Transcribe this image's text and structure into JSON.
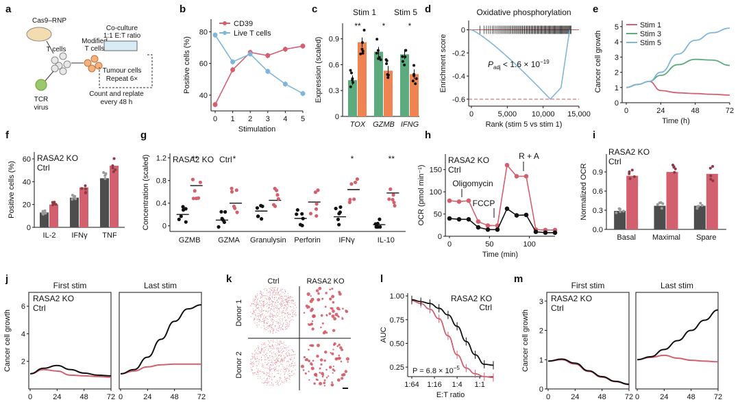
{
  "figure": {
    "panel_letters": [
      "a",
      "b",
      "c",
      "d",
      "e",
      "f",
      "g",
      "h",
      "i",
      "j",
      "k",
      "l",
      "m"
    ]
  },
  "colors": {
    "red": "#d2606e",
    "green": "#5bab7f",
    "orange": "#ef8452",
    "blue": "#7fb6d9",
    "dark": "#4d4d4d",
    "black": "#111111",
    "gray": "#777777"
  },
  "panel_a": {
    "labels": [
      "Cas9–RNP",
      "T cells",
      "Modified",
      "T cells",
      "Co-culture",
      "1:1 E:T ratio",
      "Tumour cells",
      "Repeat 6×",
      "Count and replate",
      "every 48 h",
      "TCR",
      "virus"
    ]
  },
  "chart_data": [
    {
      "panel": "b",
      "type": "line",
      "x": [
        0,
        1,
        2,
        3,
        4,
        5
      ],
      "xlabel": "Stimulation",
      "ylabel": "Positive cells (%)",
      "ylim": [
        30,
        88
      ],
      "yticks": [
        40,
        60,
        80
      ],
      "series": [
        {
          "name": "CD39",
          "color": "red",
          "values": [
            34,
            56,
            67,
            65,
            69,
            71
          ]
        },
        {
          "name": "Live T cells",
          "color": "blue",
          "values": [
            78,
            61,
            66,
            55,
            47,
            41
          ]
        }
      ]
    },
    {
      "panel": "c",
      "type": "bar",
      "categories": [
        "TOX",
        "GZMB",
        "IFNG"
      ],
      "ylabel": "Expression (scaled)",
      "ylim": [
        0,
        1.08
      ],
      "yticks": [
        0,
        0.3,
        0.6,
        0.9
      ],
      "series": [
        {
          "name": "Stim 1",
          "color": "green",
          "values": [
            0.42,
            0.75,
            0.72
          ]
        },
        {
          "name": "Stim 5",
          "color": "orange",
          "values": [
            0.86,
            0.53,
            0.49
          ]
        }
      ],
      "significance": [
        "**",
        "*",
        "*"
      ]
    },
    {
      "panel": "d",
      "type": "line",
      "title": "Oxidative phosphorylation",
      "xlabel": "Rank (stim 5 vs stim 1)",
      "ylabel": "Enrichment score",
      "xlim": [
        0,
        15000
      ],
      "ylim": [
        -0.66,
        0.08
      ],
      "xticks": [
        "0",
        "5,000",
        "10,000",
        "15,000"
      ],
      "yticks": [
        -0.6,
        -0.4,
        -0.2,
        0
      ],
      "min_point": {
        "x": 11000,
        "y": -0.6
      },
      "threshold": -0.6,
      "annotation": "P",
      "annotation_sub": "adj",
      "annotation_rest": " < 1.6 × 10",
      "annotation_exp": "−19"
    },
    {
      "panel": "e",
      "type": "line",
      "xlabel": "Time (h)",
      "ylabel": "Cancer cell growth",
      "x": [
        0,
        8,
        16,
        24,
        36,
        48,
        60,
        72
      ],
      "ylim": [
        0,
        5.4
      ],
      "yticks": [
        0,
        1,
        2,
        3,
        4,
        5
      ],
      "xticks": [
        0,
        24,
        48,
        72
      ],
      "series": [
        {
          "name": "Stim 1",
          "color": "red",
          "values": [
            1.0,
            1.2,
            1.4,
            0.8,
            0.65,
            0.6,
            0.55,
            0.5
          ]
        },
        {
          "name": "Stim 3",
          "color": "green",
          "values": [
            1.0,
            1.2,
            1.4,
            1.8,
            2.5,
            2.85,
            2.8,
            2.45
          ]
        },
        {
          "name": "Stim 5",
          "color": "blue",
          "values": [
            1.0,
            1.2,
            1.4,
            2.0,
            3.2,
            4.1,
            4.6,
            4.9
          ]
        }
      ]
    },
    {
      "panel": "f",
      "type": "bar",
      "categories": [
        "IL-2",
        "IFNγ",
        "TNF"
      ],
      "ylabel": "Positive cells (%)",
      "ylim": [
        0,
        66
      ],
      "yticks": [
        0,
        20,
        40,
        60
      ],
      "series": [
        {
          "name": "Ctrl",
          "color": "dark",
          "values": [
            13,
            26,
            43
          ]
        },
        {
          "name": "RASA2 KO",
          "color": "red",
          "values": [
            20,
            35,
            54
          ]
        }
      ]
    },
    {
      "panel": "g",
      "type": "scatter",
      "categories": [
        "GZMB",
        "GZMA",
        "Granulysin",
        "Perforin",
        "IFNγ",
        "IL-10"
      ],
      "ylabel": "Concentration (scaled)",
      "ylim": [
        -0.1,
        1.28
      ],
      "yticks": [
        0,
        0.4,
        0.8,
        1.2
      ],
      "series": [
        {
          "name": "Ctrl",
          "color": "black",
          "means": [
            0.2,
            0.1,
            0.26,
            0.13,
            0.16,
            0.02
          ]
        },
        {
          "name": "RASA2 KO",
          "color": "red",
          "means": [
            0.71,
            0.4,
            0.45,
            0.42,
            0.64,
            0.58
          ]
        }
      ],
      "significance": [
        "**",
        "*",
        "",
        "",
        "*",
        "**"
      ]
    },
    {
      "panel": "h",
      "type": "line",
      "xlabel": "Time (min)",
      "ylabel": "OCR (pmol min⁻¹)",
      "x": [
        0,
        12,
        24,
        36,
        48,
        60,
        72,
        84,
        96,
        108,
        120,
        132
      ],
      "ylim": [
        0,
        185
      ],
      "yticks": [
        0,
        50,
        100,
        150
      ],
      "xticks": [
        0,
        50,
        100
      ],
      "series": [
        {
          "name": "RASA2 KO",
          "color": "red",
          "values": [
            80,
            78,
            80,
            33,
            24,
            24,
            160,
            135,
            135,
            15,
            14,
            14
          ]
        },
        {
          "name": "Ctrl",
          "color": "black",
          "values": [
            40,
            38,
            38,
            20,
            15,
            15,
            62,
            47,
            48,
            10,
            8,
            8
          ]
        }
      ],
      "annotations": [
        "Oligomycin",
        "FCCP",
        "R + A"
      ]
    },
    {
      "panel": "i",
      "type": "bar",
      "categories": [
        "Basal",
        "Maximal",
        "Spare"
      ],
      "ylabel": "Normalized OCR",
      "ylim": [
        0,
        1.18
      ],
      "yticks": [
        0,
        0.3,
        0.6,
        0.9
      ],
      "series": [
        {
          "name": "Ctrl",
          "color": "dark",
          "values": [
            0.29,
            0.37,
            0.37
          ]
        },
        {
          "name": "RASA2 KO",
          "color": "red",
          "values": [
            0.84,
            0.9,
            0.87
          ]
        }
      ]
    },
    {
      "panel": "j",
      "type": "line",
      "xlabel": "Time (h)",
      "ylabel": "Cancer cell growth",
      "ylim": [
        0,
        7
      ],
      "yticks": [
        2,
        4,
        6
      ],
      "xticks": [
        0,
        24,
        48,
        72
      ],
      "subplots": [
        {
          "title": "First stim",
          "x": [
            0,
            12,
            24,
            36,
            48,
            60,
            72
          ],
          "series": [
            {
              "name": "RASA2 KO",
              "color": "red",
              "values": [
                1.1,
                1.4,
                1.3,
                1.0,
                0.95,
                0.9,
                0.85
              ]
            },
            {
              "name": "Ctrl",
              "color": "black",
              "values": [
                1.1,
                1.5,
                1.7,
                1.4,
                1.15,
                1.0,
                0.95
              ]
            }
          ]
        },
        {
          "title": "Last stim",
          "x": [
            0,
            12,
            24,
            36,
            48,
            60,
            72
          ],
          "series": [
            {
              "name": "RASA2 KO",
              "color": "red",
              "values": [
                1.1,
                1.3,
                1.6,
                1.75,
                1.8,
                1.8,
                1.8
              ]
            },
            {
              "name": "Ctrl",
              "color": "black",
              "values": [
                1.1,
                1.4,
                2.3,
                3.6,
                4.9,
                5.8,
                6.1
              ]
            }
          ]
        }
      ]
    },
    {
      "panel": "l",
      "type": "line",
      "xlabel": "E:T ratio",
      "ylabel": "AUC",
      "xticks": [
        "1:64",
        "1:16",
        "1:4",
        "1:1"
      ],
      "ylim": [
        0.15,
        1.03
      ],
      "yticks": [
        0.25,
        0.5,
        0.75,
        1.0
      ],
      "x": [
        0,
        1,
        2,
        3,
        4,
        5,
        6,
        7,
        8,
        9
      ],
      "series": [
        {
          "name": "RASA2 KO",
          "color": "red",
          "values": [
            0.95,
            0.92,
            0.86,
            0.76,
            0.58,
            0.38,
            0.24,
            0.18,
            0.15,
            0.14
          ]
        },
        {
          "name": "Ctrl",
          "color": "black",
          "values": [
            0.96,
            0.94,
            0.92,
            0.87,
            0.8,
            0.68,
            0.52,
            0.38,
            0.28,
            0.27
          ]
        }
      ],
      "annotation": "P = 6.8 × 10",
      "annotation_exp": "−5"
    },
    {
      "panel": "m",
      "type": "line",
      "xlabel": "Time (h)",
      "ylabel": "Cancer cell growth",
      "ylim": [
        0,
        3.3
      ],
      "yticks": [
        0,
        1,
        2,
        3
      ],
      "xticks": [
        0,
        24,
        48,
        72
      ],
      "subplots": [
        {
          "title": "First stim",
          "x": [
            0,
            12,
            24,
            36,
            48,
            60,
            72
          ],
          "series": [
            {
              "name": "RASA2 KO",
              "color": "red",
              "values": [
                0.95,
                1.0,
                0.85,
                0.6,
                0.4,
                0.25,
                0.15
              ]
            },
            {
              "name": "Ctrl",
              "color": "black",
              "values": [
                0.95,
                1.02,
                0.88,
                0.62,
                0.42,
                0.26,
                0.16
              ]
            }
          ]
        },
        {
          "title": "Last stim",
          "x": [
            0,
            12,
            24,
            36,
            48,
            60,
            72
          ],
          "series": [
            {
              "name": "RASA2 KO",
              "color": "red",
              "values": [
                1.0,
                1.08,
                1.15,
                1.05,
                0.98,
                0.95,
                0.93
              ]
            },
            {
              "name": "Ctrl",
              "color": "black",
              "values": [
                1.0,
                1.1,
                1.35,
                1.65,
                2.0,
                2.35,
                2.7
              ]
            }
          ]
        }
      ]
    }
  ],
  "panel_k": {
    "col_labels": [
      "Ctrl",
      "RASA2 KO"
    ],
    "row_labels": [
      "Donor 1",
      "Donor 2"
    ]
  }
}
